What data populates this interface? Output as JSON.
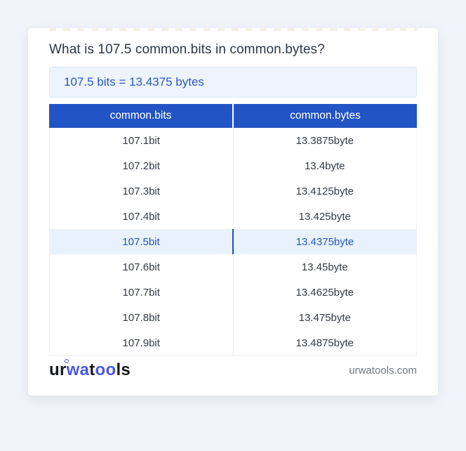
{
  "title": "What is 107.5 common.bits in common.bytes?",
  "result_text": "107.5 bits = 13.4375 bytes",
  "table": {
    "columns": [
      "common.bits",
      "common.bytes"
    ],
    "rows": [
      [
        "107.1bit",
        "13.3875byte"
      ],
      [
        "107.2bit",
        "13.4byte"
      ],
      [
        "107.3bit",
        "13.4125byte"
      ],
      [
        "107.4bit",
        "13.425byte"
      ],
      [
        "107.5bit",
        "13.4375byte"
      ],
      [
        "107.6bit",
        "13.45byte"
      ],
      [
        "107.7bit",
        "13.4625byte"
      ],
      [
        "107.8bit",
        "13.475byte"
      ],
      [
        "107.9bit",
        "13.4875byte"
      ]
    ],
    "highlighted_row_index": 4
  },
  "footer": {
    "logo_parts": [
      {
        "text": "ur",
        "style": "dark",
        "ring": false
      },
      {
        "text": "wa",
        "style": "blue",
        "ring": true
      },
      {
        "text": "t",
        "style": "dark",
        "ring": false
      },
      {
        "text": "oo",
        "style": "blue",
        "ring": false
      },
      {
        "text": "ls",
        "style": "dark",
        "ring": false
      }
    ],
    "site": "urwatools.com"
  },
  "colors": {
    "page_bg": "#f0f3f9",
    "header_blue": "#2254c5",
    "link_blue": "#2a57c0",
    "highlight_bg": "#e9f2fc",
    "highlight_divider": "#1d4fc2",
    "result_bg": "#edf4fd",
    "logo_blue": "#4a57e3"
  }
}
